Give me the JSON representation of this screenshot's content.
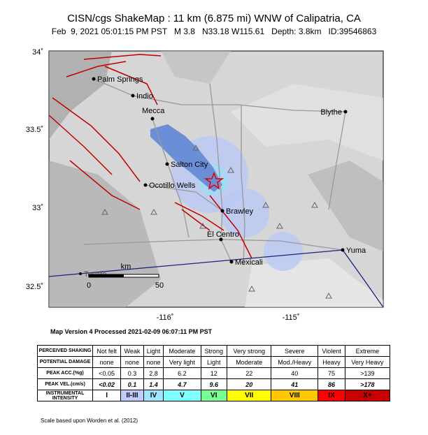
{
  "header": {
    "title": "CISN/cgs ShakeMap : 11 km (6.875 mi) WNW of Calipatria, CA",
    "subtitle": "Feb  9, 2021 05:01:15 PM PST   M 3.8   N33.18 W115.61   Depth: 3.8km   ID:39546863"
  },
  "map": {
    "lat_labels": [
      "34˚",
      "33.5˚",
      "33˚",
      "32.5˚"
    ],
    "lon_labels": [
      "-116˚",
      "-115˚"
    ],
    "places": [
      "Palm Springs",
      "Indio",
      "Mecca",
      "Blythe",
      "Salton City",
      "Ocotillo Wells",
      "Brawley",
      "El Centro",
      "Mexicali",
      "Yuma",
      "Tecate"
    ],
    "scale": {
      "unit": "km",
      "labels": [
        "0",
        "50"
      ]
    }
  },
  "version": "Map Version 4 Processed 2021-02-09 06:07:11 PM PST",
  "legend": {
    "rows": [
      {
        "label": "PERCEIVED SHAKING",
        "cells": [
          "Not felt",
          "Weak",
          "Light",
          "Moderate",
          "Strong",
          "Very strong",
          "Severe",
          "Violent",
          "Extreme"
        ]
      },
      {
        "label": "POTENTIAL DAMAGE",
        "cells": [
          "none",
          "none",
          "none",
          "Very light",
          "Light",
          "Moderate",
          "Mod./Heavy",
          "Heavy",
          "Very Heavy"
        ]
      },
      {
        "label": "PEAK ACC.(%g)",
        "cells": [
          "<0.05",
          "0.3",
          "2.8",
          "6.2",
          "12",
          "22",
          "40",
          "75",
          ">139"
        ]
      },
      {
        "label": "PEAK VEL.(cm/s)",
        "cells": [
          "<0.02",
          "0.1",
          "1.4",
          "4.7",
          "9.6",
          "20",
          "41",
          "86",
          ">178"
        ]
      },
      {
        "label": "INSTRUMENTAL INTENSITY",
        "cells": [
          "I",
          "II-III",
          "IV",
          "V",
          "VI",
          "VII",
          "VIII",
          "IX",
          "X+"
        ]
      }
    ]
  },
  "footnote": "Scale based upon Worden et al. (2012)"
}
